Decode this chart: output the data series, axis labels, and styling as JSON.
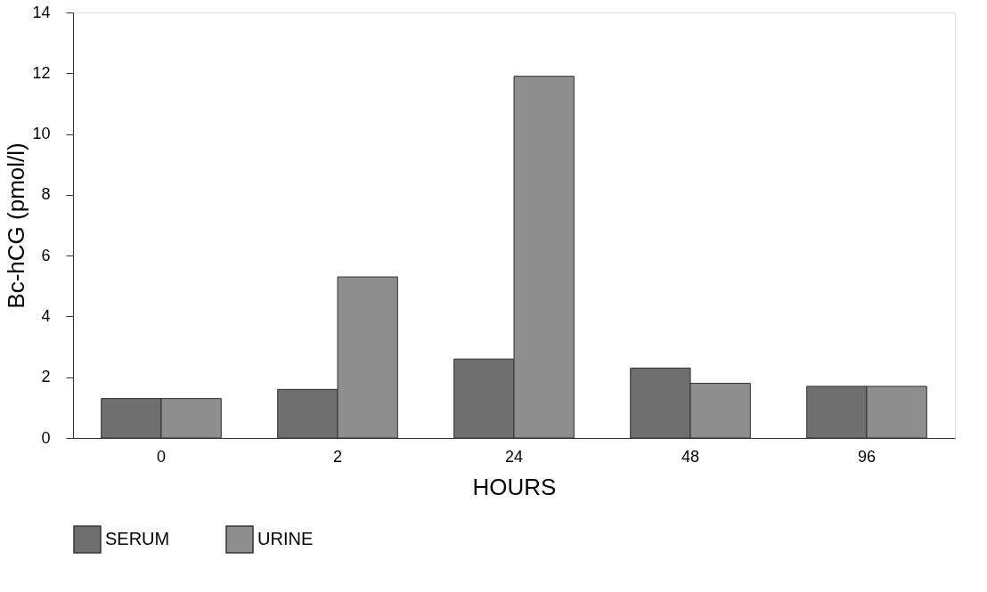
{
  "chart_data": {
    "type": "bar",
    "xlabel": "HOURS",
    "ylabel": "Bc-hCG (pmol/l)",
    "categories": [
      "0",
      "2",
      "24",
      "48",
      "96"
    ],
    "series": [
      {
        "name": "SERUM",
        "color": "#6f6f6f",
        "values": [
          1.3,
          1.6,
          2.6,
          2.3,
          1.7
        ]
      },
      {
        "name": "URINE",
        "color": "#8e8e8e",
        "values": [
          1.3,
          5.3,
          11.9,
          1.8,
          1.7
        ]
      }
    ],
    "ylim": [
      0,
      14
    ],
    "yticks": [
      0,
      2,
      4,
      6,
      8,
      10,
      12,
      14
    ],
    "grid": false,
    "legend": "bottom"
  }
}
